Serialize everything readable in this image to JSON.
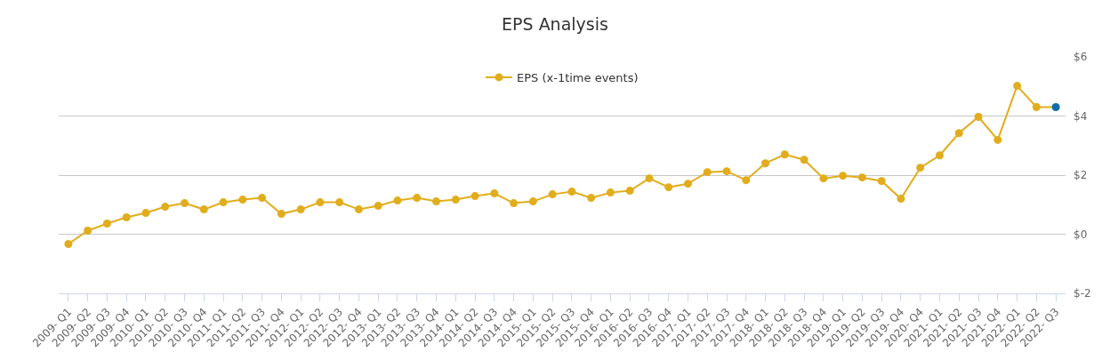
{
  "chart_data": {
    "type": "line",
    "title": "EPS Analysis",
    "categories": [
      "2009- Q1",
      "2009- Q2",
      "2009- Q3",
      "2009- Q4",
      "2010- Q1",
      "2010- Q2",
      "2010- Q3",
      "2010- Q4",
      "2011- Q1",
      "2011- Q2",
      "2011- Q3",
      "2011- Q4",
      "2012- Q1",
      "2012- Q2",
      "2012- Q3",
      "2012- Q4",
      "2013- Q1",
      "2013- Q2",
      "2013- Q3",
      "2013- Q4",
      "2014- Q1",
      "2014- Q2",
      "2014- Q3",
      "2014- Q4",
      "2015- Q1",
      "2015- Q2",
      "2015- Q3",
      "2015- Q4",
      "2016- Q1",
      "2016- Q2",
      "2016- Q3",
      "2016- Q4",
      "2017- Q1",
      "2017- Q2",
      "2017- Q3",
      "2017- Q4",
      "2018- Q1",
      "2018- Q2",
      "2018- Q3",
      "2018- Q4",
      "2019- Q1",
      "2019- Q2",
      "2019- Q3",
      "2019- Q4",
      "2020- Q4",
      "2021- Q1",
      "2021- Q2",
      "2021- Q3",
      "2021- Q4",
      "2022- Q1",
      "2022- Q2",
      "2022- Q3"
    ],
    "series": [
      {
        "name": "EPS (x-1time events)",
        "color": "#e1ad1c",
        "colors": [
          "#e1ad1c",
          "#e1ad1c",
          "#e1ad1c",
          "#e1ad1c",
          "#e1ad1c",
          "#e1ad1c",
          "#e1ad1c",
          "#e1ad1c",
          "#e1ad1c",
          "#e1ad1c",
          "#e1ad1c",
          "#e1ad1c",
          "#e1ad1c",
          "#e1ad1c",
          "#e1ad1c",
          "#e1ad1c",
          "#e1ad1c",
          "#e1ad1c",
          "#e1ad1c",
          "#e1ad1c",
          "#e1ad1c",
          "#e1ad1c",
          "#e1ad1c",
          "#e1ad1c",
          "#e1ad1c",
          "#e1ad1c",
          "#e1ad1c",
          "#e1ad1c",
          "#e1ad1c",
          "#e1ad1c",
          "#e1ad1c",
          "#e1ad1c",
          "#e1ad1c",
          "#e1ad1c",
          "#e1ad1c",
          "#e1ad1c",
          "#e1ad1c",
          "#e1ad1c",
          "#e1ad1c",
          "#e1ad1c",
          "#e1ad1c",
          "#e1ad1c",
          "#e1ad1c",
          "#e1ad1c",
          "#e1ad1c",
          "#e1ad1c",
          "#e1ad1c",
          "#e1ad1c",
          "#e1ad1c",
          "#e1ad1c",
          "#e1ad1c",
          "#0f6fa6"
        ],
        "values": [
          -0.33,
          0.12,
          0.36,
          0.57,
          0.72,
          0.93,
          1.05,
          0.84,
          1.08,
          1.17,
          1.23,
          0.69,
          0.84,
          1.08,
          1.08,
          0.84,
          0.96,
          1.14,
          1.23,
          1.11,
          1.17,
          1.29,
          1.38,
          1.05,
          1.11,
          1.35,
          1.44,
          1.23,
          1.41,
          1.47,
          1.89,
          1.59,
          1.71,
          2.1,
          2.13,
          1.83,
          2.4,
          2.7,
          2.52,
          1.89,
          1.98,
          1.92,
          1.8,
          1.2,
          2.25,
          2.67,
          3.42,
          3.97,
          3.19,
          5.02,
          4.3,
          4.3
        ]
      }
    ],
    "ylim": [
      -2,
      6
    ],
    "yticks": [
      {
        "value": -2,
        "label": "$-2"
      },
      {
        "value": 0,
        "label": "$0"
      },
      {
        "value": 2,
        "label": "$2"
      },
      {
        "value": 4,
        "label": "$4"
      },
      {
        "value": 6,
        "label": "$6"
      }
    ],
    "grid": "y",
    "legend": "top",
    "marker": "circle",
    "line_style": "solid"
  }
}
